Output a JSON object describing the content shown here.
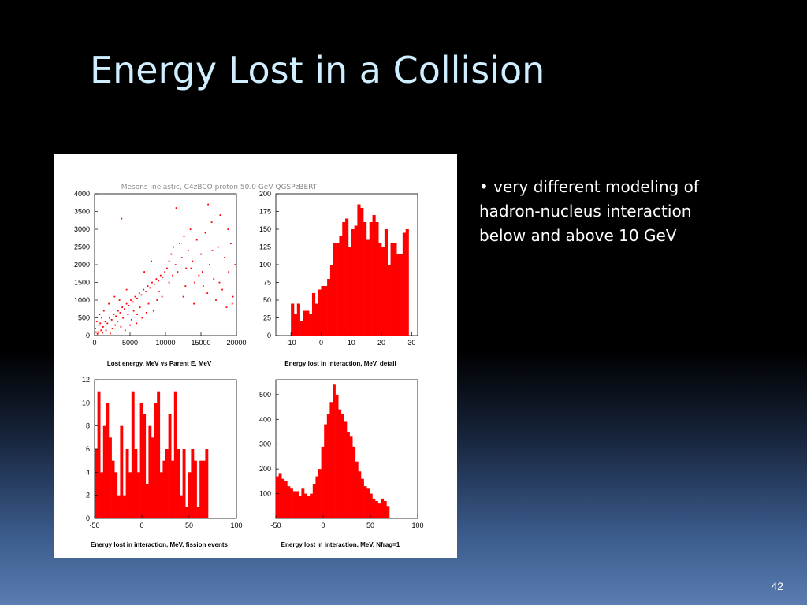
{
  "slide": {
    "title": "Energy Lost in a Collision",
    "bullet": "• very different modeling of hadron-nucleus interaction below and above 10 GeV",
    "page_number": "42",
    "figure_header": "Mesons inelastic, C4zBCO proton 50.0 GeV QGSPzBERT"
  },
  "colors": {
    "mark": "#ff0000",
    "title": "#cfeeff",
    "text": "#ffffff"
  },
  "chart_data": [
    {
      "type": "scatter",
      "xlabel": "Lost energy, MeV vs Parent E, MeV",
      "xlim": [
        0,
        20000
      ],
      "ylim": [
        0,
        4000
      ],
      "xticks": [
        0,
        5000,
        10000,
        15000,
        20000
      ],
      "yticks": [
        0,
        500,
        1000,
        1500,
        2000,
        2500,
        3000,
        3500,
        4000
      ],
      "points": [
        [
          200,
          100
        ],
        [
          400,
          50
        ],
        [
          600,
          300
        ],
        [
          900,
          150
        ],
        [
          1200,
          250
        ],
        [
          1500,
          400
        ],
        [
          1800,
          350
        ],
        [
          2100,
          500
        ],
        [
          2400,
          450
        ],
        [
          2700,
          600
        ],
        [
          3000,
          550
        ],
        [
          3300,
          700
        ],
        [
          3600,
          650
        ],
        [
          3900,
          800
        ],
        [
          4200,
          750
        ],
        [
          4500,
          900
        ],
        [
          4800,
          850
        ],
        [
          5100,
          1000
        ],
        [
          5400,
          950
        ],
        [
          5700,
          1100
        ],
        [
          6000,
          1050
        ],
        [
          6300,
          1200
        ],
        [
          6600,
          1150
        ],
        [
          6900,
          1300
        ],
        [
          7200,
          1250
        ],
        [
          7500,
          1400
        ],
        [
          7800,
          1350
        ],
        [
          8100,
          1500
        ],
        [
          8400,
          1450
        ],
        [
          8700,
          1600
        ],
        [
          9000,
          1550
        ],
        [
          9300,
          1700
        ],
        [
          9600,
          1650
        ],
        [
          9900,
          1800
        ],
        [
          10200,
          1900
        ],
        [
          10500,
          2100
        ],
        [
          10800,
          2300
        ],
        [
          11100,
          2500
        ],
        [
          11400,
          2000
        ],
        [
          11700,
          1800
        ],
        [
          12000,
          2600
        ],
        [
          12300,
          2200
        ],
        [
          12600,
          2800
        ],
        [
          12900,
          1900
        ],
        [
          13200,
          2400
        ],
        [
          13500,
          3000
        ],
        [
          13800,
          2100
        ],
        [
          14100,
          1500
        ],
        [
          14400,
          2700
        ],
        [
          14700,
          1700
        ],
        [
          15000,
          2300
        ],
        [
          15300,
          1400
        ],
        [
          15600,
          2900
        ],
        [
          15900,
          1200
        ],
        [
          16200,
          2000
        ],
        [
          16500,
          3200
        ],
        [
          16800,
          1600
        ],
        [
          17100,
          1000
        ],
        [
          17400,
          2500
        ],
        [
          17700,
          3400
        ],
        [
          18000,
          1300
        ],
        [
          18300,
          2200
        ],
        [
          18600,
          800
        ],
        [
          18900,
          1800
        ],
        [
          19200,
          2600
        ],
        [
          19500,
          1100
        ],
        [
          19800,
          2000
        ],
        [
          3800,
          3300
        ],
        [
          11500,
          3600
        ],
        [
          16000,
          3700
        ],
        [
          7000,
          1800
        ],
        [
          8000,
          2100
        ],
        [
          6000,
          600
        ],
        [
          5000,
          300
        ],
        [
          2500,
          200
        ],
        [
          1000,
          500
        ],
        [
          3500,
          1000
        ],
        [
          4500,
          1300
        ],
        [
          5500,
          700
        ],
        [
          9500,
          1100
        ],
        [
          10500,
          1500
        ],
        [
          12500,
          1100
        ],
        [
          14000,
          900
        ],
        [
          700,
          600
        ],
        [
          1300,
          700
        ],
        [
          2000,
          900
        ],
        [
          2800,
          1100
        ],
        [
          3200,
          400
        ],
        [
          4000,
          500
        ],
        [
          4700,
          600
        ],
        [
          6400,
          800
        ],
        [
          7600,
          900
        ],
        [
          8800,
          1000
        ],
        [
          100,
          200
        ],
        [
          300,
          400
        ],
        [
          500,
          100
        ],
        [
          800,
          350
        ],
        [
          1100,
          80
        ],
        [
          1600,
          150
        ],
        [
          2200,
          60
        ],
        [
          2900,
          300
        ],
        [
          3700,
          250
        ],
        [
          4300,
          150
        ],
        [
          5200,
          450
        ],
        [
          5900,
          350
        ],
        [
          6700,
          500
        ],
        [
          7300,
          650
        ],
        [
          8300,
          700
        ],
        [
          9100,
          1250
        ],
        [
          11000,
          1700
        ],
        [
          12800,
          1400
        ],
        [
          13600,
          1900
        ],
        [
          15200,
          1800
        ],
        [
          16600,
          2400
        ],
        [
          17600,
          1500
        ],
        [
          18800,
          3000
        ],
        [
          19400,
          900
        ]
      ]
    },
    {
      "type": "bar",
      "xlabel": "Energy lost in interaction, MeV, detail",
      "xlim": [
        -15,
        32
      ],
      "ylim": [
        0,
        200
      ],
      "xticks": [
        -10,
        0,
        10,
        20,
        30
      ],
      "yticks": [
        0,
        25,
        50,
        75,
        100,
        125,
        150,
        175,
        200
      ],
      "bin_start": -10,
      "bin_width": 1,
      "values": [
        45,
        30,
        45,
        20,
        35,
        35,
        30,
        60,
        45,
        65,
        70,
        70,
        80,
        100,
        130,
        130,
        140,
        160,
        165,
        125,
        150,
        155,
        185,
        180,
        160,
        135,
        160,
        170,
        160,
        130,
        125,
        150,
        100,
        130,
        130,
        115,
        115,
        145,
        150
      ]
    },
    {
      "type": "bar",
      "xlabel": "Energy lost in interaction, MeV, fission events",
      "xlim": [
        -50,
        100
      ],
      "ylim": [
        0,
        12
      ],
      "xticks": [
        -50,
        0,
        50,
        100
      ],
      "yticks": [
        0,
        2,
        4,
        6,
        8,
        10,
        12
      ],
      "bin_start": -50,
      "bin_width": 3,
      "values": [
        6,
        11,
        4,
        8,
        10,
        7,
        5,
        4,
        2,
        8,
        2,
        6,
        4,
        11,
        6,
        4,
        10,
        9,
        3,
        8,
        7,
        10,
        11,
        4,
        5,
        6,
        9,
        5,
        11,
        6,
        2,
        6,
        1,
        4,
        6,
        5,
        1,
        5,
        5,
        6
      ]
    },
    {
      "type": "bar",
      "xlabel": "Energy lost in interaction, MeV, Nfrag=1",
      "xlim": [
        -50,
        100
      ],
      "ylim": [
        0,
        560
      ],
      "xticks": [
        -50,
        0,
        50,
        100
      ],
      "yticks": [
        100,
        200,
        300,
        400,
        500
      ],
      "bin_start": -50,
      "bin_width": 3,
      "values": [
        170,
        180,
        160,
        150,
        130,
        120,
        110,
        110,
        90,
        120,
        100,
        90,
        100,
        140,
        170,
        200,
        290,
        380,
        420,
        470,
        540,
        500,
        440,
        420,
        390,
        350,
        330,
        290,
        230,
        190,
        160,
        130,
        120,
        100,
        80,
        70,
        60,
        80,
        70,
        50
      ]
    }
  ]
}
